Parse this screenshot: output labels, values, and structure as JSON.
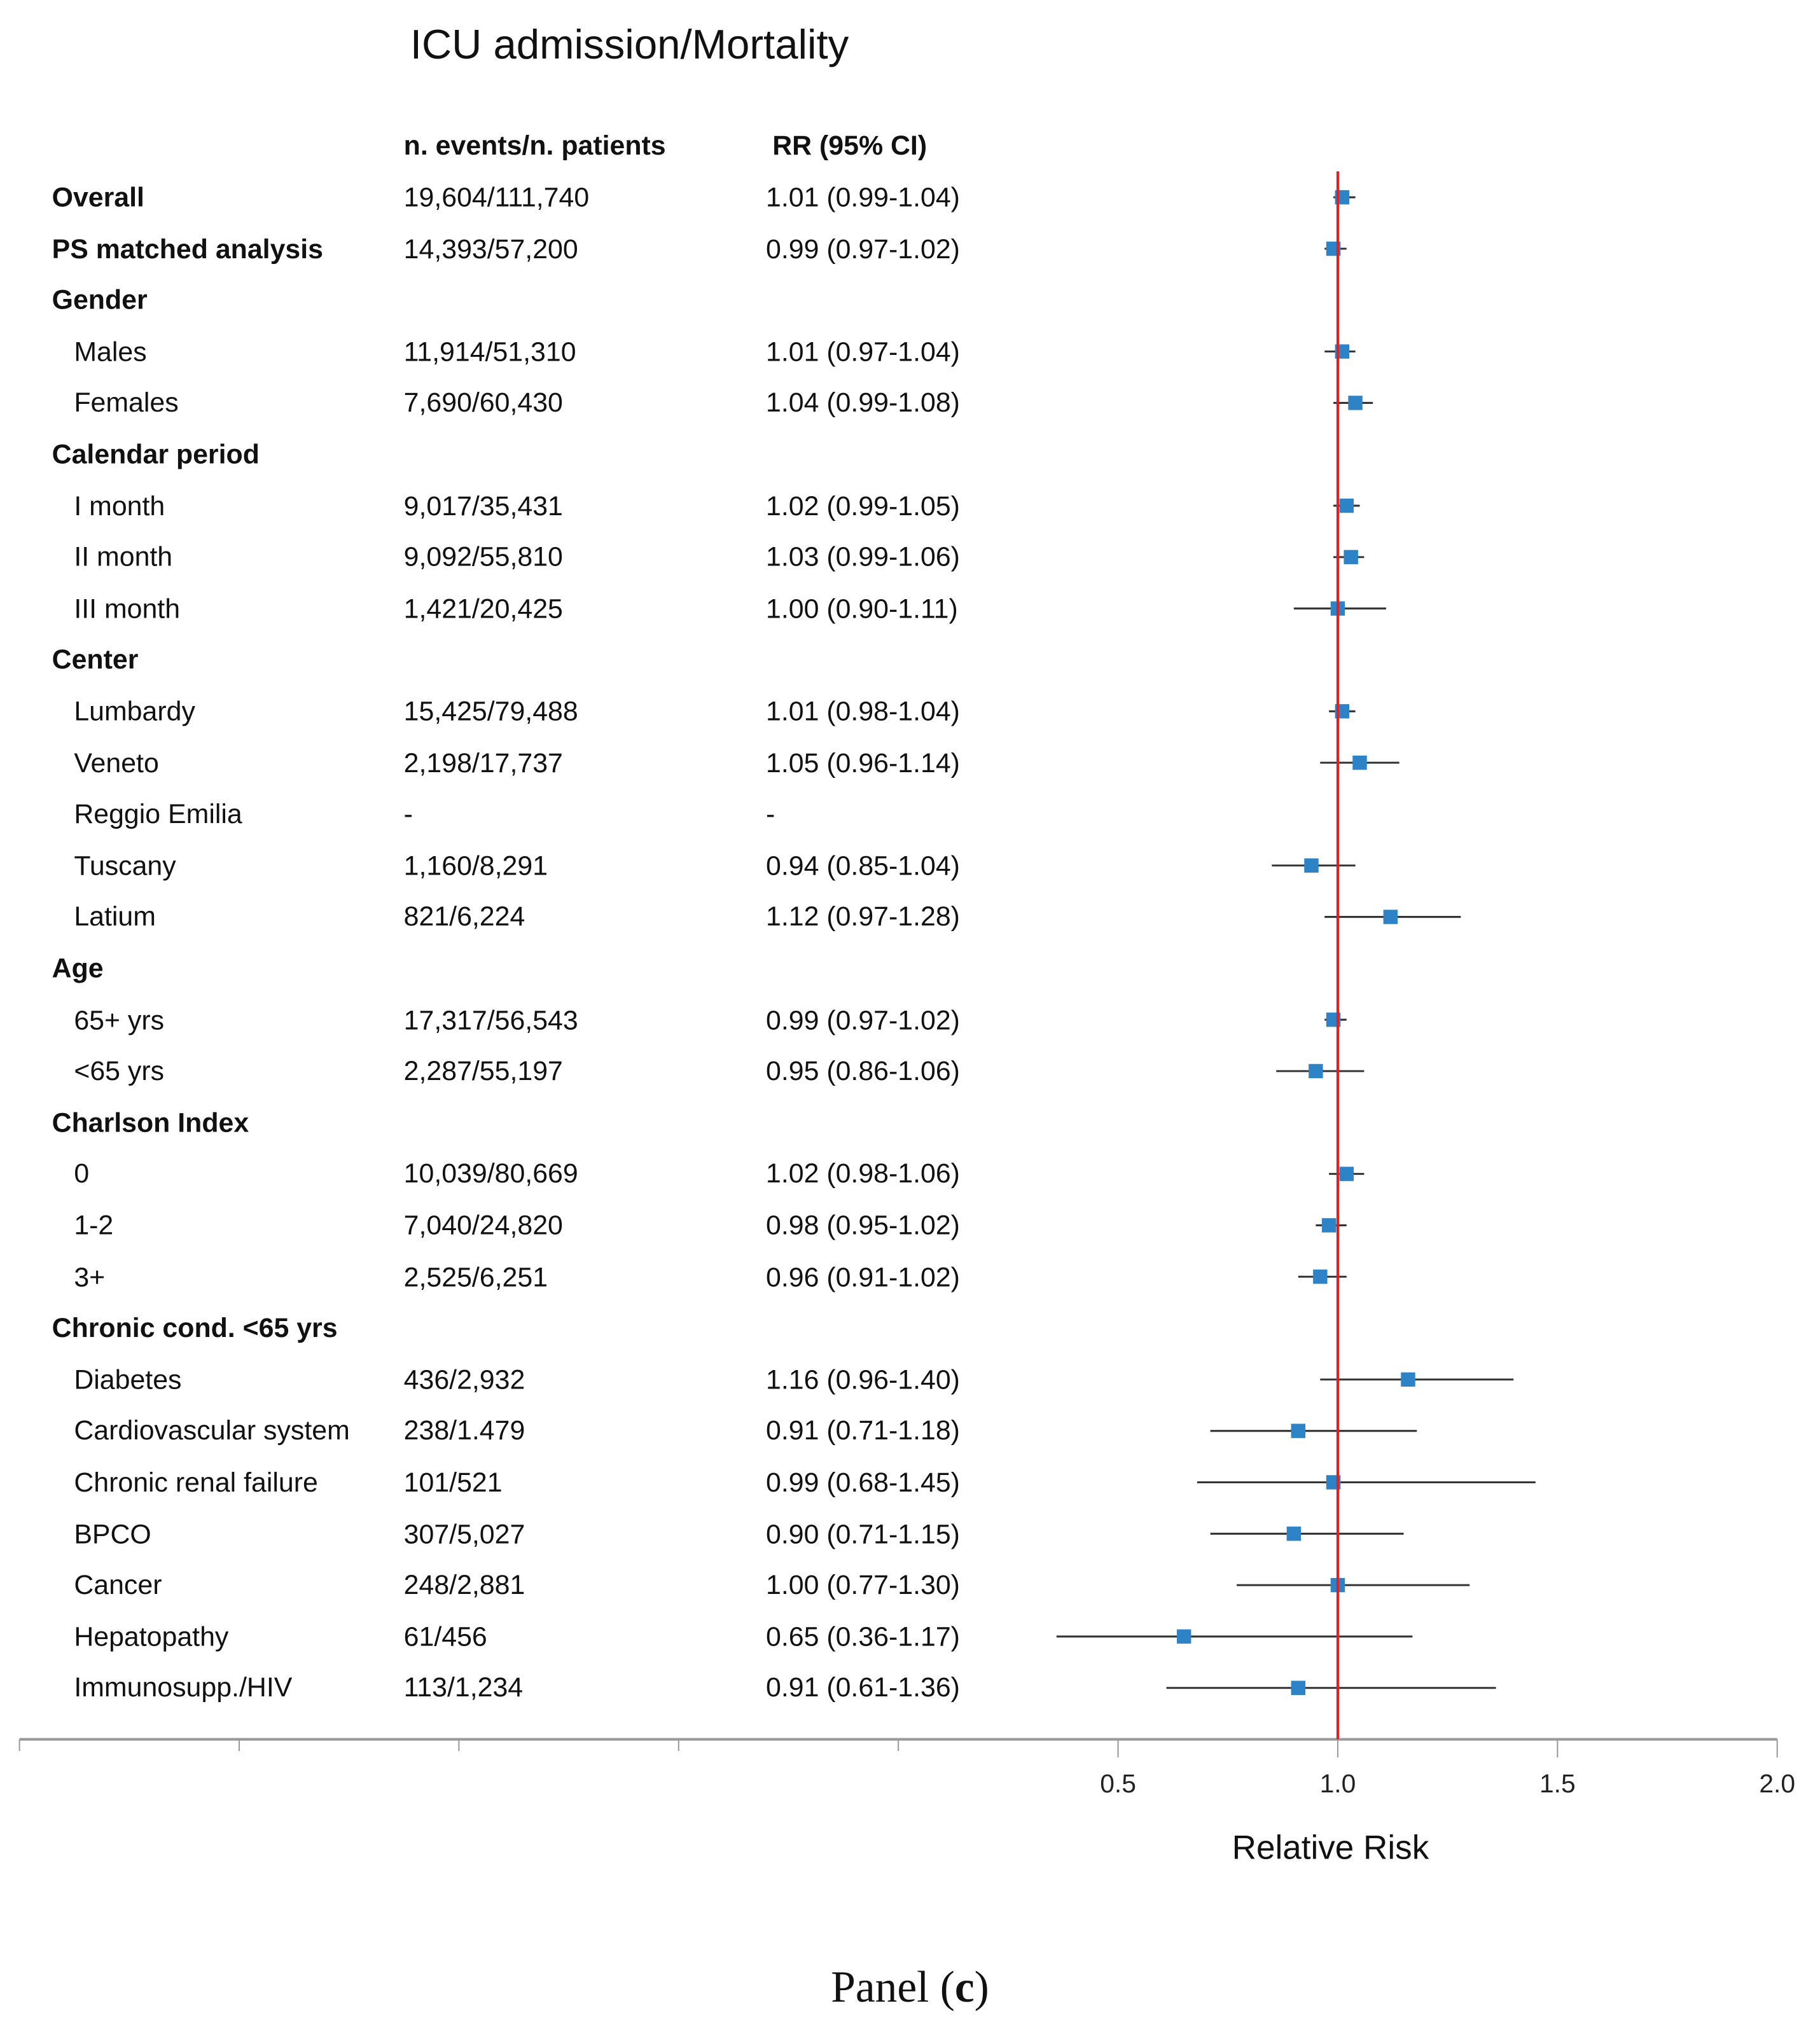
{
  "chart_data": {
    "type": "forest",
    "title": "ICU admission/Mortality",
    "column_headers": {
      "events": "n. events/n. patients",
      "rr": "RR (95% CI)"
    },
    "xlabel": "Relative Risk",
    "xlim": [
      -2.0,
      2.0
    ],
    "x_ticks": [
      -2.0,
      -1.5,
      -1.0,
      -0.5,
      0.0,
      0.5,
      1.0,
      1.5,
      2.0
    ],
    "x_tick_labels": [
      "0.5",
      "1.0",
      "1.5",
      "2.0"
    ],
    "reference_line": 1.0,
    "colors": {
      "marker": "#2E83C6",
      "ci": "#333333",
      "reference": "#E02020"
    },
    "rows": [
      {
        "label": "Overall",
        "header": true,
        "events": "19,604/111,740",
        "rr_text": "1.01 (0.99-1.04)",
        "rr": 1.01,
        "lo": 0.99,
        "hi": 1.04
      },
      {
        "label": "PS matched analysis",
        "header": true,
        "events": "14,393/57,200",
        "rr_text": "0.99 (0.97-1.02)",
        "rr": 0.99,
        "lo": 0.97,
        "hi": 1.02
      },
      {
        "label": "Gender",
        "header": true
      },
      {
        "label": "Males",
        "events": "11,914/51,310",
        "rr_text": "1.01 (0.97-1.04)",
        "rr": 1.01,
        "lo": 0.97,
        "hi": 1.04
      },
      {
        "label": "Females",
        "events": "7,690/60,430",
        "rr_text": "1.04 (0.99-1.08)",
        "rr": 1.04,
        "lo": 0.99,
        "hi": 1.08
      },
      {
        "label": "Calendar period",
        "header": true
      },
      {
        "label": "I month",
        "events": "9,017/35,431",
        "rr_text": "1.02 (0.99-1.05)",
        "rr": 1.02,
        "lo": 0.99,
        "hi": 1.05
      },
      {
        "label": "II month",
        "events": "9,092/55,810",
        "rr_text": "1.03 (0.99-1.06)",
        "rr": 1.03,
        "lo": 0.99,
        "hi": 1.06
      },
      {
        "label": "III month",
        "events": "1,421/20,425",
        "rr_text": "1.00 (0.90-1.11)",
        "rr": 1.0,
        "lo": 0.9,
        "hi": 1.11
      },
      {
        "label": "Center",
        "header": true
      },
      {
        "label": "Lumbardy",
        "events": "15,425/79,488",
        "rr_text": "1.01 (0.98-1.04)",
        "rr": 1.01,
        "lo": 0.98,
        "hi": 1.04
      },
      {
        "label": "Veneto",
        "events": "2,198/17,737",
        "rr_text": "1.05 (0.96-1.14)",
        "rr": 1.05,
        "lo": 0.96,
        "hi": 1.14
      },
      {
        "label": "Reggio Emilia",
        "events": "-",
        "rr_text": "-"
      },
      {
        "label": "Tuscany",
        "events": "1,160/8,291",
        "rr_text": "0.94 (0.85-1.04)",
        "rr": 0.94,
        "lo": 0.85,
        "hi": 1.04
      },
      {
        "label": "Latium",
        "events": "821/6,224",
        "rr_text": "1.12 (0.97-1.28)",
        "rr": 1.12,
        "lo": 0.97,
        "hi": 1.28
      },
      {
        "label": "Age",
        "header": true
      },
      {
        "label": "65+ yrs",
        "events": "17,317/56,543",
        "rr_text": "0.99 (0.97-1.02)",
        "rr": 0.99,
        "lo": 0.97,
        "hi": 1.02
      },
      {
        "label": "<65 yrs",
        "events": "2,287/55,197",
        "rr_text": "0.95 (0.86-1.06)",
        "rr": 0.95,
        "lo": 0.86,
        "hi": 1.06
      },
      {
        "label": "Charlson Index",
        "header": true
      },
      {
        "label": "0",
        "events": "10,039/80,669",
        "rr_text": "1.02 (0.98-1.06)",
        "rr": 1.02,
        "lo": 0.98,
        "hi": 1.06
      },
      {
        "label": "1-2",
        "events": "7,040/24,820",
        "rr_text": "0.98 (0.95-1.02)",
        "rr": 0.98,
        "lo": 0.95,
        "hi": 1.02
      },
      {
        "label": "3+",
        "events": "2,525/6,251",
        "rr_text": "0.96 (0.91-1.02)",
        "rr": 0.96,
        "lo": 0.91,
        "hi": 1.02
      },
      {
        "label": "Chronic cond. <65 yrs",
        "header": true
      },
      {
        "label": "Diabetes",
        "events": "436/2,932",
        "rr_text": "1.16 (0.96-1.40)",
        "rr": 1.16,
        "lo": 0.96,
        "hi": 1.4
      },
      {
        "label": "Cardiovascular system",
        "events": "238/1.479",
        "rr_text": "0.91 (0.71-1.18)",
        "rr": 0.91,
        "lo": 0.71,
        "hi": 1.18
      },
      {
        "label": "Chronic renal failure",
        "events": "101/521",
        "rr_text": "0.99 (0.68-1.45)",
        "rr": 0.99,
        "lo": 0.68,
        "hi": 1.45
      },
      {
        "label": "BPCO",
        "events": "307/5,027",
        "rr_text": "0.90 (0.71-1.15)",
        "rr": 0.9,
        "lo": 0.71,
        "hi": 1.15
      },
      {
        "label": "Cancer",
        "events": "248/2,881",
        "rr_text": "1.00 (0.77-1.30)",
        "rr": 1.0,
        "lo": 0.77,
        "hi": 1.3
      },
      {
        "label": "Hepatopathy",
        "events": "61/456",
        "rr_text": "0.65 (0.36-1.17)",
        "rr": 0.65,
        "lo": 0.36,
        "hi": 1.17
      },
      {
        "label": "Immunosupp./HIV",
        "events": "113/1,234",
        "rr_text": "0.91 (0.61-1.36)",
        "rr": 0.91,
        "lo": 0.61,
        "hi": 1.36
      }
    ]
  },
  "caption": {
    "prefix": "Panel (",
    "letter": "c",
    "suffix": ")"
  }
}
